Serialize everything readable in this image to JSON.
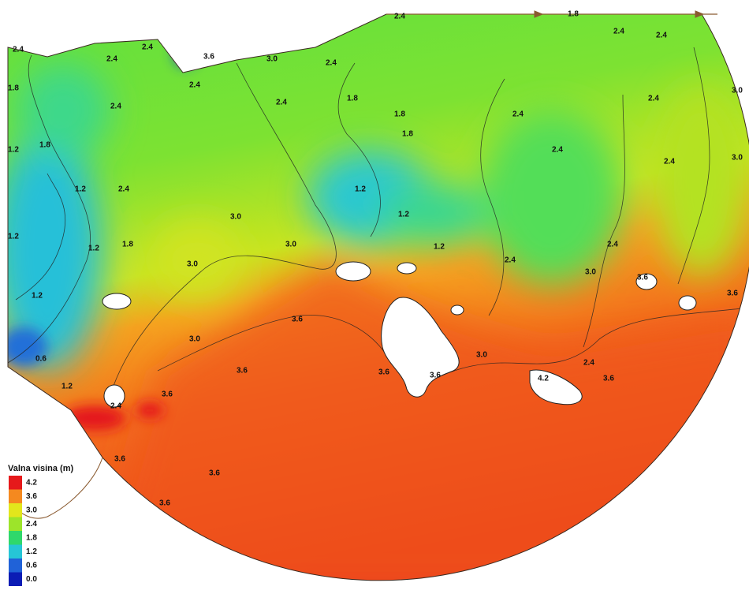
{
  "map": {
    "legend": {
      "title": "Valna visina (m)",
      "entries": [
        {
          "label": "4.2",
          "color": "#e6191b"
        },
        {
          "label": "3.6",
          "color": "#f5891f"
        },
        {
          "label": "3.0",
          "color": "#e3e61c"
        },
        {
          "label": "2.4",
          "color": "#9de42a"
        },
        {
          "label": "1.8",
          "color": "#2fd86b"
        },
        {
          "label": "1.2",
          "color": "#26c6d6"
        },
        {
          "label": "0.6",
          "color": "#2062d8"
        },
        {
          "label": "0.0",
          "color": "#0b1cb5"
        }
      ]
    },
    "contour_labels": [
      "2.4",
      "1.8",
      "2.4",
      "2.4",
      "3.6",
      "3.0",
      "2.4",
      "2.4",
      "1.8",
      "2.4",
      "2.4",
      "3.0",
      "2.4",
      "1.8",
      "1.2",
      "2.4",
      "2.4",
      "2.4",
      "1.8",
      "1.8",
      "1.8",
      "2.4",
      "2.4",
      "2.4",
      "3.0",
      "2.4",
      "1.2",
      "3.0",
      "3.0",
      "3.0",
      "1.2",
      "1.2",
      "1.8",
      "1.2",
      "1.2",
      "1.2",
      "2.4",
      "2.4",
      "3.0",
      "3.6",
      "3.6",
      "1.2",
      "0.6",
      "1.2",
      "2.4",
      "3.6",
      "3.0",
      "3.6",
      "3.6",
      "3.6",
      "3.0",
      "4.2",
      "2.4",
      "3.6",
      "3.6",
      "3.6",
      "3.6",
      "3.6"
    ]
  }
}
